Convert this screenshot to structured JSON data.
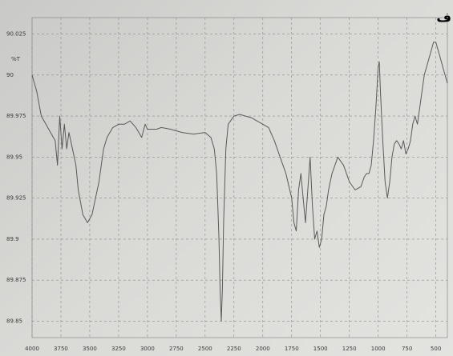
{
  "corner_text": "ف",
  "chart_data": {
    "type": "line",
    "title": "",
    "ylabel": "%T",
    "xlabel": "",
    "x_reversed": true,
    "xlim": [
      4000,
      400
    ],
    "ylim": [
      89.84,
      90.035
    ],
    "grid": true,
    "x_ticks": [
      "4000",
      "3750",
      "3500",
      "3250",
      "3000",
      "2750",
      "2500",
      "2250",
      "2000",
      "1750",
      "1500",
      "1250",
      "1000",
      "750",
      "500"
    ],
    "y_ticks": [
      "90.025",
      "90",
      "89.975",
      "89.95",
      "89.925",
      "89.9",
      "89.875",
      "89.85"
    ],
    "line_color": "#5a5a5a",
    "grid_color": "#8a8a8a",
    "series": [
      {
        "x": [
          4000,
          3960,
          3920,
          3880,
          3840,
          3800,
          3780,
          3760,
          3740,
          3720,
          3700,
          3680,
          3650,
          3620,
          3600,
          3560,
          3520,
          3480,
          3450,
          3420,
          3400,
          3380,
          3350,
          3300,
          3250,
          3200,
          3150,
          3100,
          3050,
          3020,
          3000,
          2960,
          2920,
          2880,
          2800,
          2700,
          2600,
          2500,
          2450,
          2420,
          2400,
          2390,
          2380,
          2370,
          2360,
          2350,
          2340,
          2320,
          2300,
          2250,
          2200,
          2150,
          2100,
          2050,
          2000,
          1950,
          1900,
          1850,
          1800,
          1750,
          1730,
          1710,
          1690,
          1670,
          1650,
          1630,
          1610,
          1590,
          1570,
          1550,
          1530,
          1510,
          1490,
          1470,
          1450,
          1430,
          1400,
          1350,
          1300,
          1250,
          1200,
          1150,
          1120,
          1100,
          1080,
          1060,
          1040,
          1020,
          1000,
          990,
          980,
          960,
          940,
          920,
          900,
          880,
          860,
          840,
          820,
          800,
          780,
          760,
          740,
          720,
          700,
          680,
          660,
          640,
          620,
          600,
          580,
          560,
          540,
          520,
          500,
          480,
          460,
          440,
          420,
          400
        ],
        "y": [
          90.0,
          89.99,
          89.975,
          89.97,
          89.965,
          89.96,
          89.945,
          89.975,
          89.955,
          89.97,
          89.955,
          89.965,
          89.955,
          89.945,
          89.93,
          89.915,
          89.91,
          89.915,
          89.925,
          89.935,
          89.945,
          89.955,
          89.962,
          89.968,
          89.97,
          89.97,
          89.972,
          89.968,
          89.962,
          89.97,
          89.967,
          89.967,
          89.967,
          89.968,
          89.967,
          89.965,
          89.964,
          89.965,
          89.962,
          89.955,
          89.94,
          89.92,
          89.9,
          89.87,
          89.85,
          89.87,
          89.91,
          89.955,
          89.97,
          89.975,
          89.976,
          89.975,
          89.974,
          89.972,
          89.97,
          89.968,
          89.96,
          89.95,
          89.94,
          89.925,
          89.91,
          89.905,
          89.93,
          89.94,
          89.925,
          89.91,
          89.93,
          89.95,
          89.92,
          89.9,
          89.905,
          89.895,
          89.9,
          89.915,
          89.92,
          89.93,
          89.94,
          89.95,
          89.945,
          89.935,
          89.93,
          89.932,
          89.938,
          89.94,
          89.94,
          89.945,
          89.96,
          89.98,
          90.005,
          90.008,
          89.99,
          89.96,
          89.935,
          89.925,
          89.935,
          89.95,
          89.958,
          89.96,
          89.958,
          89.955,
          89.96,
          89.952,
          89.955,
          89.96,
          89.97,
          89.975,
          89.97,
          89.98,
          89.99,
          90.0,
          90.005,
          90.01,
          90.015,
          90.02,
          90.02,
          90.015,
          90.01,
          90.005,
          90.0,
          89.995
        ]
      }
    ]
  }
}
